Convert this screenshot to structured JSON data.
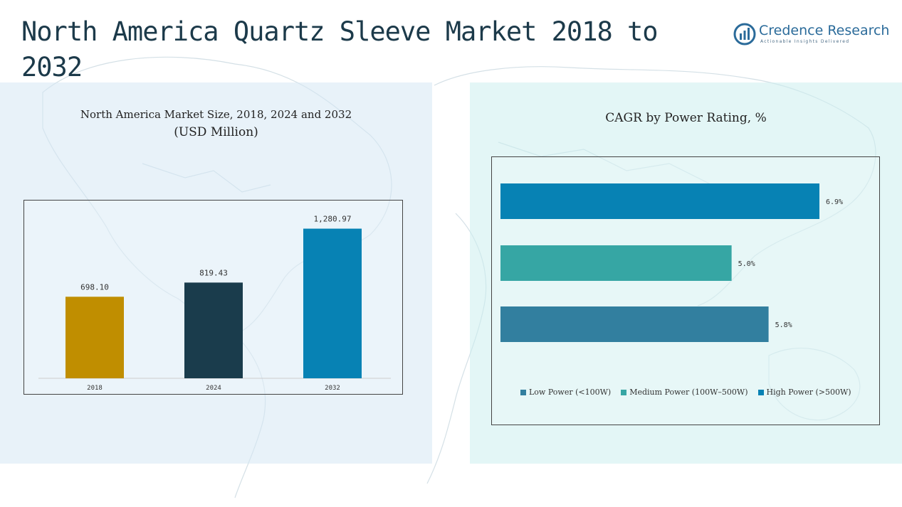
{
  "page": {
    "title": "North America Quartz Sleeve Market 2018 to 2032"
  },
  "logo": {
    "name": "Credence Research",
    "tagline": "Actionable Insights Delivered"
  },
  "chart_data": [
    {
      "type": "bar",
      "title": "North America Market Size, 2018, 2024 and 2032",
      "subtitle": "(USD Million)",
      "categories": [
        "2018",
        "2024",
        "2032"
      ],
      "values": [
        698.1,
        819.43,
        1280.97
      ],
      "value_labels": [
        "698.10",
        "819.43",
        "1,280.97"
      ],
      "colors": [
        "#c08e00",
        "#1a3c4c",
        "#0782b4"
      ],
      "ylim": [
        0,
        1400
      ],
      "xlabel": "",
      "ylabel": ""
    },
    {
      "type": "bar",
      "orientation": "horizontal",
      "title": "CAGR by Power Rating, %",
      "categories": [
        "High Power (>500W)",
        "Medium Power (100W–500W)",
        "Low Power (<100W)"
      ],
      "values": [
        6.9,
        5.0,
        5.8
      ],
      "value_labels": [
        "6.9%",
        "5.0%",
        "5.8%"
      ],
      "colors": [
        "#0782b4",
        "#36a6a4",
        "#327f9f"
      ],
      "xlim": [
        0,
        7
      ],
      "legend": [
        {
          "label": "Low Power (<100W)",
          "color": "#327f9f"
        },
        {
          "label": "Medium Power (100W–500W)",
          "color": "#36a6a4"
        },
        {
          "label": "High Power (>500W)",
          "color": "#0782b4"
        }
      ],
      "legend_position": "bottom"
    }
  ]
}
